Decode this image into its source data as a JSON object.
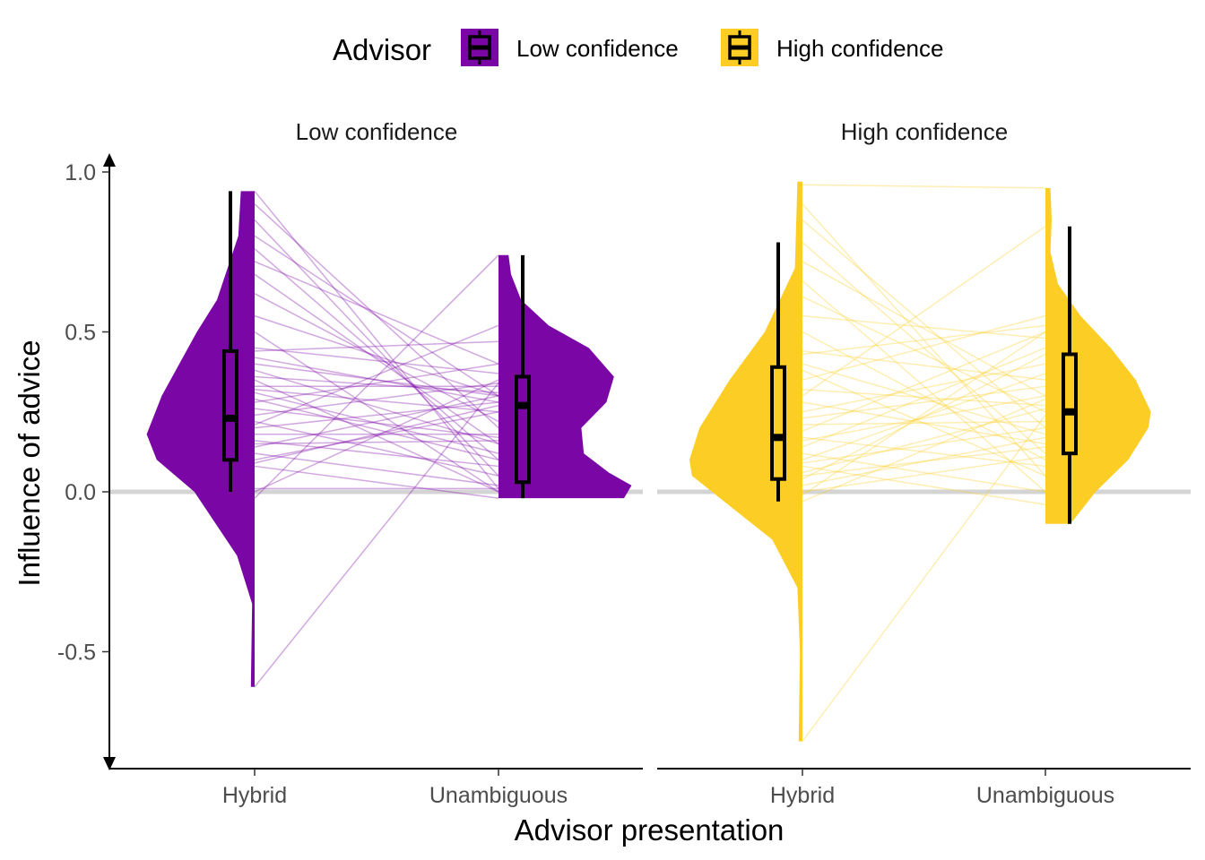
{
  "chart_data": {
    "type": "raincloud",
    "legend": {
      "title": "Advisor",
      "position": "top",
      "entries": [
        {
          "label": "Low confidence",
          "color": "#7a06a6"
        },
        {
          "label": "High confidence",
          "color": "#fcce25"
        }
      ]
    },
    "xlabel": "Advisor presentation",
    "ylabel": "Influence of advice",
    "ylim": [
      -0.78,
      1.0
    ],
    "yticks": [
      1.0,
      0.5,
      0.0,
      -0.5
    ],
    "ytick_labels": [
      "1.0",
      "0.5",
      "0.0",
      "-0.5"
    ],
    "reference_line": 0,
    "grid": false,
    "categories": [
      "Hybrid",
      "Unambiguous"
    ],
    "panels": [
      {
        "title": "Low confidence",
        "color": "#7a06a6",
        "boxes": [
          {
            "category": "Hybrid",
            "whisker_low": 0.0,
            "q1": 0.1,
            "median": 0.23,
            "q3": 0.44,
            "whisker_high": 0.94
          },
          {
            "category": "Unambiguous",
            "whisker_low": -0.02,
            "q1": 0.03,
            "median": 0.27,
            "q3": 0.36,
            "whisker_high": 0.74
          }
        ],
        "densities": [
          {
            "category": "Hybrid",
            "y": [
              -0.61,
              -0.35,
              -0.2,
              0.0,
              0.1,
              0.18,
              0.3,
              0.5,
              0.6,
              0.8,
              0.94
            ],
            "density": [
              0.15,
              0.1,
              0.7,
              2.4,
              3.9,
              4.3,
              3.7,
              2.3,
              1.5,
              0.65,
              0.55
            ]
          },
          {
            "category": "Unambiguous",
            "y": [
              -0.02,
              0.02,
              0.06,
              0.12,
              0.2,
              0.28,
              0.36,
              0.45,
              0.52,
              0.6,
              0.68,
              0.74
            ],
            "density": [
              5.0,
              5.3,
              4.4,
              3.4,
              3.3,
              4.3,
              4.6,
              3.6,
              2.0,
              0.9,
              0.5,
              0.4
            ]
          }
        ],
        "pairs": [
          [
            0.94,
            0.01
          ],
          [
            0.9,
            0.2
          ],
          [
            0.85,
            0.05
          ],
          [
            0.8,
            0.3
          ],
          [
            0.76,
            0.1
          ],
          [
            0.72,
            0.4
          ],
          [
            0.68,
            0.15
          ],
          [
            0.62,
            0.22
          ],
          [
            0.55,
            0.3
          ],
          [
            0.5,
            0.0
          ],
          [
            0.45,
            0.37
          ],
          [
            0.44,
            0.47
          ],
          [
            0.42,
            0.28
          ],
          [
            0.4,
            0.3
          ],
          [
            0.38,
            0.15
          ],
          [
            0.36,
            0.31
          ],
          [
            0.35,
            0.0
          ],
          [
            0.33,
            0.33
          ],
          [
            0.32,
            0.25
          ],
          [
            0.31,
            0.12
          ],
          [
            0.29,
            0.1
          ],
          [
            0.28,
            0.4
          ],
          [
            0.26,
            0.17
          ],
          [
            0.24,
            0.34
          ],
          [
            0.22,
            0.05
          ],
          [
            0.21,
            0.52
          ],
          [
            0.2,
            0.28
          ],
          [
            0.18,
            0.18
          ],
          [
            0.16,
            0.08
          ],
          [
            0.15,
            0.16
          ],
          [
            0.14,
            0.3
          ],
          [
            0.12,
            0.02
          ],
          [
            0.1,
            0.25
          ],
          [
            0.09,
            0.27
          ],
          [
            0.08,
            -0.02
          ],
          [
            0.01,
            0.01
          ],
          [
            0.0,
            0.35
          ],
          [
            -0.02,
            0.74
          ],
          [
            -0.61,
            0.34
          ]
        ]
      },
      {
        "title": "High confidence",
        "color": "#fcce25",
        "boxes": [
          {
            "category": "Hybrid",
            "whisker_low": -0.03,
            "q1": 0.04,
            "median": 0.17,
            "q3": 0.39,
            "whisker_high": 0.78
          },
          {
            "category": "Unambiguous",
            "whisker_low": -0.1,
            "q1": 0.12,
            "median": 0.25,
            "q3": 0.43,
            "whisker_high": 0.83
          }
        ],
        "densities": [
          {
            "category": "Hybrid",
            "y": [
              -0.78,
              -0.5,
              -0.3,
              -0.15,
              -0.05,
              0.05,
              0.1,
              0.2,
              0.35,
              0.5,
              0.7,
              0.97
            ],
            "density": [
              0.15,
              0.1,
              0.2,
              1.2,
              2.8,
              4.4,
              4.5,
              4.1,
              2.9,
              1.5,
              0.3,
              0.2
            ]
          },
          {
            "category": "Unambiguous",
            "y": [
              -0.1,
              0.0,
              0.1,
              0.2,
              0.25,
              0.35,
              0.45,
              0.55,
              0.65,
              0.75,
              0.85,
              0.95
            ],
            "density": [
              1.0,
              2.0,
              3.3,
              4.1,
              4.2,
              3.6,
              2.6,
              1.4,
              0.5,
              0.2,
              0.25,
              0.2
            ]
          }
        ],
        "pairs": [
          [
            0.96,
            0.95
          ],
          [
            0.9,
            0.05
          ],
          [
            0.85,
            0.2
          ],
          [
            0.78,
            0.12
          ],
          [
            0.72,
            0.3
          ],
          [
            0.66,
            0.0
          ],
          [
            0.61,
            0.25
          ],
          [
            0.55,
            0.48
          ],
          [
            0.5,
            0.1
          ],
          [
            0.44,
            0.35
          ],
          [
            0.43,
            0.52
          ],
          [
            0.4,
            0.18
          ],
          [
            0.38,
            0.05
          ],
          [
            0.35,
            0.55
          ],
          [
            0.32,
            0.27
          ],
          [
            0.3,
            0.83
          ],
          [
            0.28,
            0.15
          ],
          [
            0.25,
            0.4
          ],
          [
            0.23,
            0.33
          ],
          [
            0.21,
            0.22
          ],
          [
            0.19,
            0.5
          ],
          [
            0.17,
            0.08
          ],
          [
            0.16,
            0.3
          ],
          [
            0.14,
            0.45
          ],
          [
            0.12,
            0.0
          ],
          [
            0.1,
            0.37
          ],
          [
            0.09,
            0.2
          ],
          [
            0.08,
            -0.04
          ],
          [
            0.06,
            0.26
          ],
          [
            0.05,
            0.14
          ],
          [
            0.04,
            0.43
          ],
          [
            0.02,
            0.17
          ],
          [
            0.0,
            0.11
          ],
          [
            -0.01,
            0.5
          ],
          [
            -0.03,
            0.29
          ],
          [
            -0.78,
            0.24
          ]
        ]
      }
    ]
  }
}
